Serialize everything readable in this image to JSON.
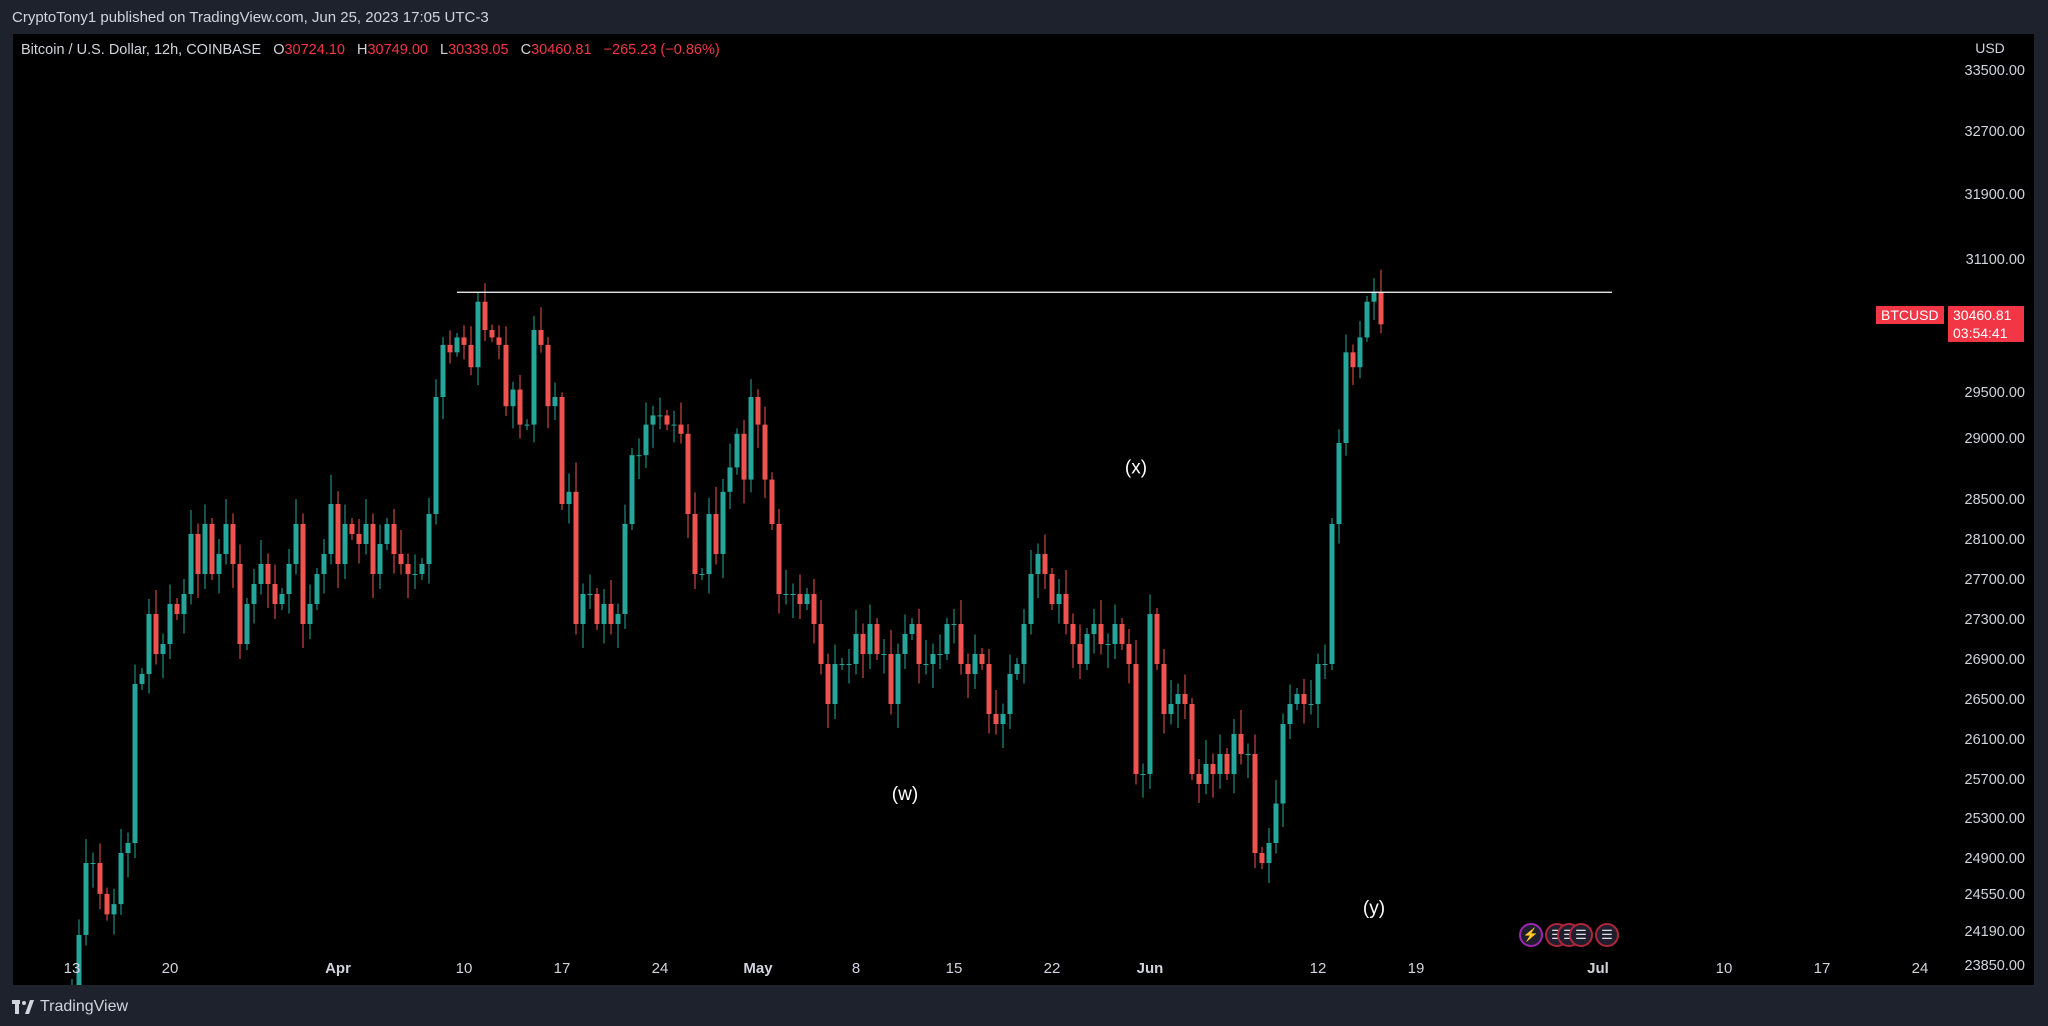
{
  "header": {
    "publisher": "CryptoTony1 published on TradingView.com, Jun 25, 2023 17:05 UTC-3"
  },
  "legend": {
    "symbol": "Bitcoin / U.S. Dollar, 12h, COINBASE",
    "open_label": "O",
    "open": "30724.10",
    "high_label": "H",
    "high": "30749.00",
    "low_label": "L",
    "low": "30339.05",
    "close_label": "C",
    "close": "30460.81",
    "change": "−265.23 (−0.86%)"
  },
  "price_tag": {
    "ticker": "BTCUSD",
    "price": "30460.81",
    "countdown": "03:54:41"
  },
  "footer": {
    "brand": "TradingView"
  },
  "colors": {
    "up": "#26a69a",
    "down": "#ef5350",
    "background": "#000000",
    "frame": "#1e222d",
    "resistance_line": "#ffffff"
  },
  "icons": [
    "lightning-icon",
    "us-flag-icon",
    "us-flag-icon",
    "us-flag-icon",
    "us-flag-icon"
  ],
  "chart_data": {
    "type": "candlestick",
    "yaxis_unit": "USD",
    "y_ticks": [
      23850,
      24190,
      24550,
      24900,
      25300,
      25700,
      26100,
      26500,
      26900,
      27300,
      27700,
      28100,
      28500,
      29000,
      29500,
      30400,
      31100,
      31900,
      32700,
      33500
    ],
    "y_tick_labels": [
      "23850.00",
      "24190.00",
      "24550.00",
      "24900.00",
      "25300.00",
      "25700.00",
      "26100.00",
      "26500.00",
      "26900.00",
      "27300.00",
      "27700.00",
      "28100.00",
      "28500.00",
      "29000.00",
      "29500.00",
      "30400.00",
      "31100.00",
      "31900.00",
      "32700.00",
      "33500.00"
    ],
    "x_tick_labels": [
      "13",
      "20",
      "Apr",
      "10",
      "17",
      "24",
      "May",
      "8",
      "15",
      "22",
      "Jun",
      "12",
      "19",
      "Jul",
      "10",
      "17",
      "24"
    ],
    "x_tick_slots": [
      0,
      14,
      38,
      56,
      70,
      84,
      98,
      112,
      126,
      140,
      154,
      178,
      192,
      218,
      236,
      250,
      264
    ],
    "resistance_level": 30800,
    "resistance_range_slots": [
      55,
      220
    ],
    "wave_labels": [
      {
        "text": "(w)",
        "slot": 119,
        "price": 25720,
        "position": "below"
      },
      {
        "text": "(x)",
        "slot": 152,
        "price": 28700,
        "position": "above"
      },
      {
        "text": "(y)",
        "slot": 186,
        "price": 24580,
        "position": "below"
      }
    ],
    "close_series": [
      23700,
      24200,
      24900,
      24900,
      24600,
      24400,
      24500,
      25000,
      25100,
      26700,
      26800,
      27400,
      27000,
      27100,
      27500,
      27400,
      27600,
      28200,
      27800,
      28300,
      27800,
      28000,
      28300,
      27900,
      27100,
      27500,
      27700,
      27900,
      27700,
      27500,
      27600,
      27900,
      28300,
      27300,
      27500,
      27800,
      28000,
      28500,
      27900,
      28300,
      28200,
      28100,
      28300,
      27800,
      28100,
      28300,
      28000,
      27900,
      27800,
      27800,
      27900,
      28400,
      29500,
      30200,
      30100,
      30300,
      30200,
      29900,
      30700,
      30400,
      30300,
      30200,
      29400,
      29600,
      29200,
      29200,
      30400,
      30200,
      29400,
      29500,
      28500,
      28600,
      27300,
      27600,
      27600,
      27300,
      27500,
      27300,
      27400,
      28300,
      28900,
      28900,
      29200,
      29300,
      29300,
      29200,
      29200,
      29100,
      28400,
      27800,
      27800,
      28400,
      28000,
      28600,
      28800,
      29100,
      28700,
      29500,
      29200,
      28700,
      28300,
      27600,
      27600,
      27600,
      27500,
      27600,
      27300,
      26900,
      26500,
      26900,
      26900,
      26900,
      27200,
      27000,
      27300,
      27000,
      27000,
      26500,
      27000,
      27200,
      27300,
      26900,
      26900,
      27000,
      27000,
      27300,
      27300,
      26900,
      26800,
      27000,
      26900,
      26400,
      26300,
      26400,
      26800,
      26900,
      27300,
      27800,
      28000,
      27800,
      27500,
      27600,
      27300,
      27100,
      26900,
      27200,
      27300,
      27100,
      27100,
      27300,
      27100,
      26900,
      25800,
      25800,
      27400,
      26900,
      26400,
      26500,
      26600,
      26500,
      25800,
      25700,
      25900,
      25800,
      26000,
      25800,
      26200,
      26000,
      26000,
      25000,
      24900,
      25100,
      25500,
      26300,
      26500,
      26600,
      26500,
      26500,
      26900,
      26900,
      28300,
      29000,
      30100,
      29900,
      30300,
      30700,
      30800,
      30460
    ]
  }
}
